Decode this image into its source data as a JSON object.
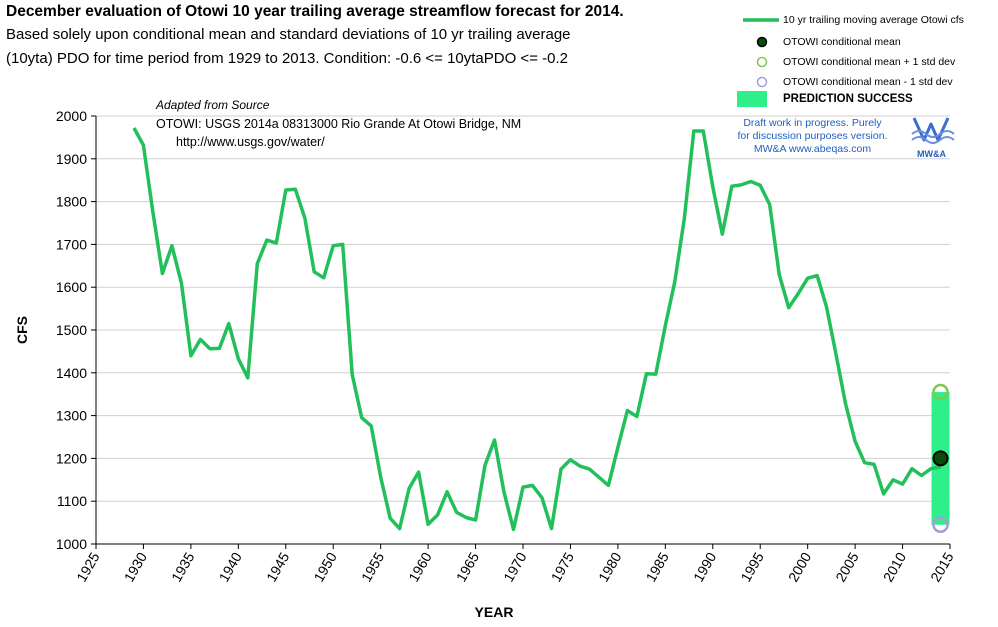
{
  "header": {
    "title": "December evaluation of Otowi 10 year trailing average streamflow forecast for 2014.",
    "subtitle_line1": "Based solely upon conditional mean and standard deviations of 10 yr trailing average",
    "subtitle_line2": "(10yta) PDO for time period from 1929 to 2013.       Condition: -0.6 <= 10ytaPDO <= -0.2"
  },
  "source": {
    "adapted": "Adapted from Source",
    "name": "OTOWI:  USGS 2014a  08313000  Rio Grande At Otowi Bridge, NM",
    "url": "http://www.usgs.gov/water/"
  },
  "draft_note": {
    "line1": "Draft work in progress.  Purely",
    "line2": "for discussion purposes version.",
    "line3": "MW&A www.abeqas.com"
  },
  "logo": {
    "text": "MW&A",
    "icon": "mwa-wave-logo-icon"
  },
  "legend": {
    "series": "10 yr trailing moving average Otowi cfs",
    "mean": "OTOWI conditional mean",
    "plus": "OTOWI conditional mean + 1 std dev",
    "minus": "OTOWI conditional mean  - 1 std dev",
    "success": "PREDICTION SUCCESS"
  },
  "colors": {
    "series": "#22c05a",
    "band": "#2ef08a",
    "mean_fill": "#0a4d0a",
    "plus": "#7ec850",
    "minus": "#a89ad8",
    "axis": "#000000"
  },
  "chart_data": {
    "type": "line",
    "xlabel": "YEAR",
    "ylabel": "CFS",
    "xlim": [
      1925,
      2015
    ],
    "ylim": [
      1000,
      2000
    ],
    "xticks": [
      "1925",
      "1930",
      "1935",
      "1940",
      "1945",
      "1950",
      "1955",
      "1960",
      "1965",
      "1970",
      "1975",
      "1980",
      "1985",
      "1990",
      "1995",
      "2000",
      "2005",
      "2010",
      "2015"
    ],
    "yticks": [
      "1000",
      "1100",
      "1200",
      "1300",
      "1400",
      "1500",
      "1600",
      "1700",
      "1800",
      "1900",
      "2000"
    ],
    "grid": true,
    "legend_position": "top-right",
    "series": [
      {
        "name": "10 yr trailing moving average Otowi cfs",
        "x": [
          1929,
          1930,
          1931,
          1932,
          1933,
          1934,
          1935,
          1936,
          1937,
          1938,
          1939,
          1940,
          1941,
          1942,
          1943,
          1944,
          1945,
          1946,
          1947,
          1948,
          1949,
          1950,
          1951,
          1952,
          1953,
          1954,
          1955,
          1956,
          1957,
          1958,
          1959,
          1960,
          1961,
          1962,
          1963,
          1964,
          1965,
          1966,
          1967,
          1968,
          1969,
          1970,
          1971,
          1972,
          1973,
          1974,
          1975,
          1976,
          1977,
          1978,
          1979,
          1980,
          1981,
          1982,
          1983,
          1984,
          1985,
          1986,
          1987,
          1988,
          1989,
          1990,
          1991,
          1992,
          1993,
          1994,
          1995,
          1996,
          1997,
          1998,
          1999,
          2000,
          2001,
          2002,
          2003,
          2004,
          2005,
          2006,
          2007,
          2008,
          2009,
          2010,
          2011,
          2012,
          2013,
          2014
        ],
        "y": [
          1972,
          1932,
          1775,
          1632,
          1697,
          1610,
          1440,
          1478,
          1456,
          1457,
          1515,
          1433,
          1388,
          1655,
          1710,
          1703,
          1827,
          1829,
          1762,
          1636,
          1622,
          1697,
          1700,
          1396,
          1295,
          1276,
          1156,
          1060,
          1036,
          1130,
          1168,
          1046,
          1068,
          1122,
          1074,
          1062,
          1056,
          1184,
          1243,
          1121,
          1034,
          1133,
          1137,
          1108,
          1036,
          1175,
          1197,
          1182,
          1175,
          1156,
          1137,
          1226,
          1312,
          1298,
          1398,
          1397,
          1510,
          1613,
          1760,
          1965,
          1965,
          1834,
          1724,
          1836,
          1839,
          1847,
          1838,
          1793,
          1630,
          1552,
          1585,
          1621,
          1627,
          1553,
          1442,
          1327,
          1240,
          1190,
          1186,
          1117,
          1150,
          1140,
          1176,
          1160,
          1176,
          1180
        ]
      }
    ],
    "forecast": {
      "year": 2014,
      "mean": 1200,
      "plus_1sd": 1355,
      "minus_1sd": 1045
    }
  }
}
